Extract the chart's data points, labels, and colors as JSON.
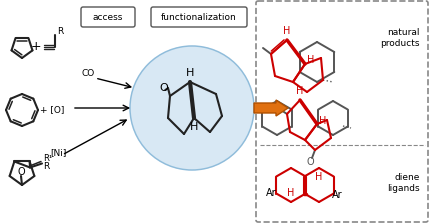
{
  "bg_color": "#ffffff",
  "access_label": "access",
  "functionalization_label": "functionalization",
  "natural_products_label": "natural\nproducts",
  "diene_ligands_label": "diene\nligands",
  "co_label": "CO",
  "r_label": "R",
  "r1_label": "R¹",
  "arrow_color": "#e07010",
  "red_color": "#cc0000",
  "gray_color": "#555555",
  "blue_circle_color": "#c8dff0",
  "dashed_box_color": "#888888",
  "bond_color": "#222222",
  "figsize": [
    4.3,
    2.23
  ],
  "dpi": 100
}
